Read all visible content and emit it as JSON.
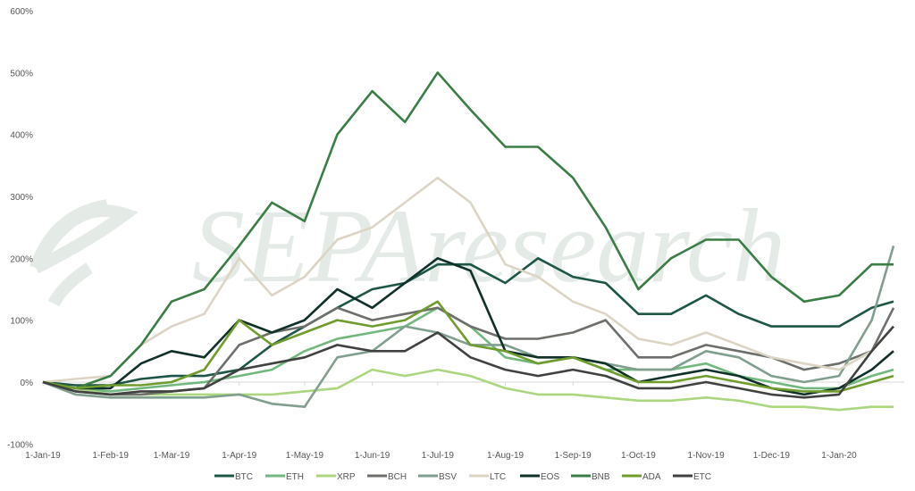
{
  "chart_data": {
    "type": "line",
    "title": "",
    "xlabel": "",
    "ylabel": "",
    "ylim": [
      -100,
      600
    ],
    "yticks": [
      "600%",
      "500%",
      "400%",
      "300%",
      "200%",
      "100%",
      "0%",
      "-100%"
    ],
    "ytick_values": [
      600,
      500,
      400,
      300,
      200,
      100,
      0,
      -100
    ],
    "xticks": [
      "1-Jan-19",
      "1-Feb-19",
      "1-Mar-19",
      "1-Apr-19",
      "1-May-19",
      "1-Jun-19",
      "1-Jul-19",
      "1-Aug-19",
      "1-Sep-19",
      "1-Oct-19",
      "1-Nov-19",
      "1-Dec-19",
      "1-Jan-20"
    ],
    "xtick_days": [
      0,
      31,
      59,
      90,
      120,
      151,
      181,
      212,
      243,
      273,
      304,
      334,
      365
    ],
    "legend_position": "bottom",
    "watermark": "SEPAresearch",
    "x_days": [
      0,
      15,
      31,
      45,
      59,
      74,
      90,
      105,
      120,
      135,
      151,
      166,
      181,
      196,
      212,
      227,
      243,
      258,
      273,
      288,
      304,
      319,
      334,
      349,
      365,
      380,
      390
    ],
    "series": [
      {
        "name": "BTC",
        "color": "#1d5546",
        "values": [
          0,
          -5,
          -5,
          5,
          10,
          10,
          20,
          60,
          90,
          120,
          150,
          160,
          190,
          190,
          160,
          200,
          170,
          160,
          110,
          110,
          140,
          110,
          90,
          90,
          90,
          120,
          130
        ]
      },
      {
        "name": "ETH",
        "color": "#72b87e",
        "values": [
          0,
          -10,
          -15,
          -10,
          -5,
          0,
          10,
          20,
          50,
          70,
          80,
          90,
          120,
          90,
          40,
          30,
          40,
          20,
          20,
          20,
          30,
          10,
          0,
          -10,
          -10,
          10,
          20
        ]
      },
      {
        "name": "XRP",
        "color": "#acd67f",
        "values": [
          0,
          -10,
          -20,
          -20,
          -20,
          -20,
          -20,
          -20,
          -15,
          -10,
          20,
          10,
          20,
          10,
          -10,
          -20,
          -20,
          -25,
          -30,
          -30,
          -25,
          -30,
          -40,
          -40,
          -45,
          -40,
          -40
        ]
      },
      {
        "name": "BCH",
        "color": "#6c6f6a",
        "values": [
          0,
          -15,
          -20,
          -20,
          -15,
          -10,
          60,
          80,
          90,
          120,
          100,
          110,
          120,
          90,
          70,
          70,
          80,
          100,
          40,
          40,
          60,
          50,
          40,
          20,
          30,
          50,
          120
        ]
      },
      {
        "name": "BSV",
        "color": "#819f8e",
        "values": [
          0,
          -20,
          -25,
          -25,
          -25,
          -25,
          -20,
          -35,
          -40,
          40,
          50,
          90,
          80,
          60,
          60,
          40,
          40,
          30,
          20,
          20,
          50,
          40,
          10,
          0,
          10,
          100,
          220
        ]
      },
      {
        "name": "LTC",
        "color": "#ddd5c4",
        "values": [
          0,
          5,
          10,
          60,
          90,
          110,
          200,
          140,
          170,
          230,
          250,
          290,
          330,
          290,
          190,
          170,
          130,
          110,
          70,
          60,
          80,
          60,
          40,
          30,
          20,
          50,
          90
        ]
      },
      {
        "name": "EOS",
        "color": "#10302a",
        "values": [
          0,
          -10,
          -10,
          30,
          50,
          40,
          100,
          80,
          100,
          150,
          120,
          160,
          200,
          180,
          50,
          40,
          40,
          30,
          0,
          10,
          20,
          10,
          -10,
          -20,
          -10,
          20,
          50
        ]
      },
      {
        "name": "BNB",
        "color": "#3a7d45",
        "values": [
          0,
          -10,
          10,
          60,
          130,
          150,
          220,
          290,
          260,
          400,
          470,
          420,
          500,
          440,
          380,
          380,
          330,
          250,
          150,
          200,
          230,
          230,
          170,
          130,
          140,
          190,
          190
        ]
      },
      {
        "name": "ADA",
        "color": "#6f9c2d",
        "values": [
          0,
          -10,
          -5,
          -5,
          0,
          20,
          100,
          60,
          80,
          100,
          90,
          100,
          130,
          60,
          50,
          30,
          40,
          20,
          0,
          0,
          10,
          0,
          -10,
          -15,
          -15,
          0,
          10
        ]
      },
      {
        "name": "ETC",
        "color": "#404240",
        "values": [
          0,
          -15,
          -20,
          -15,
          -15,
          -10,
          20,
          30,
          40,
          60,
          50,
          50,
          80,
          40,
          20,
          10,
          20,
          10,
          -10,
          -10,
          0,
          -10,
          -20,
          -25,
          -20,
          50,
          90
        ]
      }
    ]
  }
}
